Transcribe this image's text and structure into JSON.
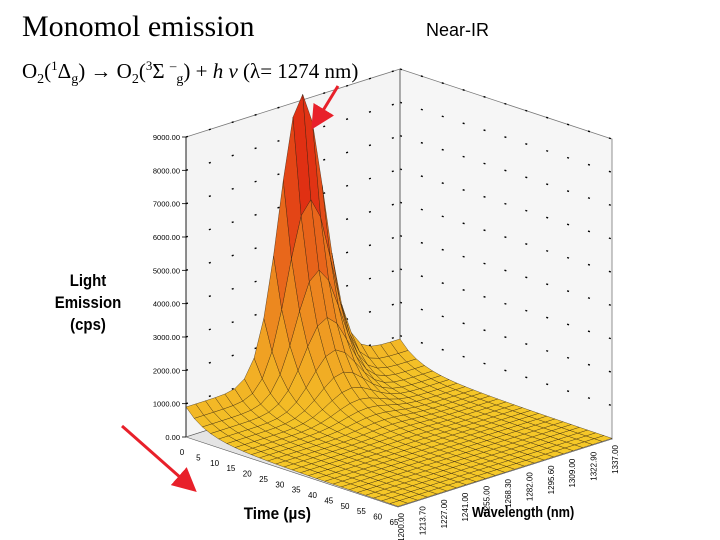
{
  "header": {
    "title": "Monomol emission",
    "near_ir": "Near-IR",
    "formula": {
      "part1": "O",
      "sub1": "2",
      "part2": "(",
      "sup1": "1",
      "part3": "Δ",
      "sub2": "g",
      "part4": ") → O",
      "sub3": "2",
      "part5": "(",
      "sup2": "3",
      "part6": "Σ ",
      "sup3": "–",
      "sub4": "g",
      "part7": ") + ",
      "hnu": "h ν",
      "part8": " (λ= 1274 nm)"
    }
  },
  "colors": {
    "arrow": "#e8202a",
    "peak": "#d8141a",
    "surface_low": "#f0c020",
    "grid": "#000000"
  },
  "chart_data": {
    "type": "surface",
    "title": "",
    "zlabel": "Light Emission (cps)",
    "xlabel": "Time (µs)",
    "ylabel": "Wavelength (nm)",
    "z_ticks": [
      "0.00",
      "1000.00",
      "2000.00",
      "3000.00",
      "4000.00",
      "5000.00",
      "6000.00",
      "7000.00",
      "8000.00",
      "9000.00"
    ],
    "z_range": [
      0,
      9000
    ],
    "time_ticks": [
      "0",
      "5",
      "10",
      "15",
      "20",
      "25",
      "30",
      "35",
      "40",
      "45",
      "50",
      "55",
      "60",
      "65"
    ],
    "time_range": [
      0,
      65
    ],
    "wavelength_ticks": [
      "1337.00",
      "1322.90",
      "1309.00",
      "1295.60",
      "1282.00",
      "1268.30",
      "1255.00",
      "1241.00",
      "1227.00",
      "1213.70",
      "1200.00"
    ],
    "wavelength_range": [
      1200,
      1337
    ],
    "peak": {
      "time": 0,
      "wavelength": 1274,
      "value": 9000
    },
    "decay_constant_us": 6
  }
}
